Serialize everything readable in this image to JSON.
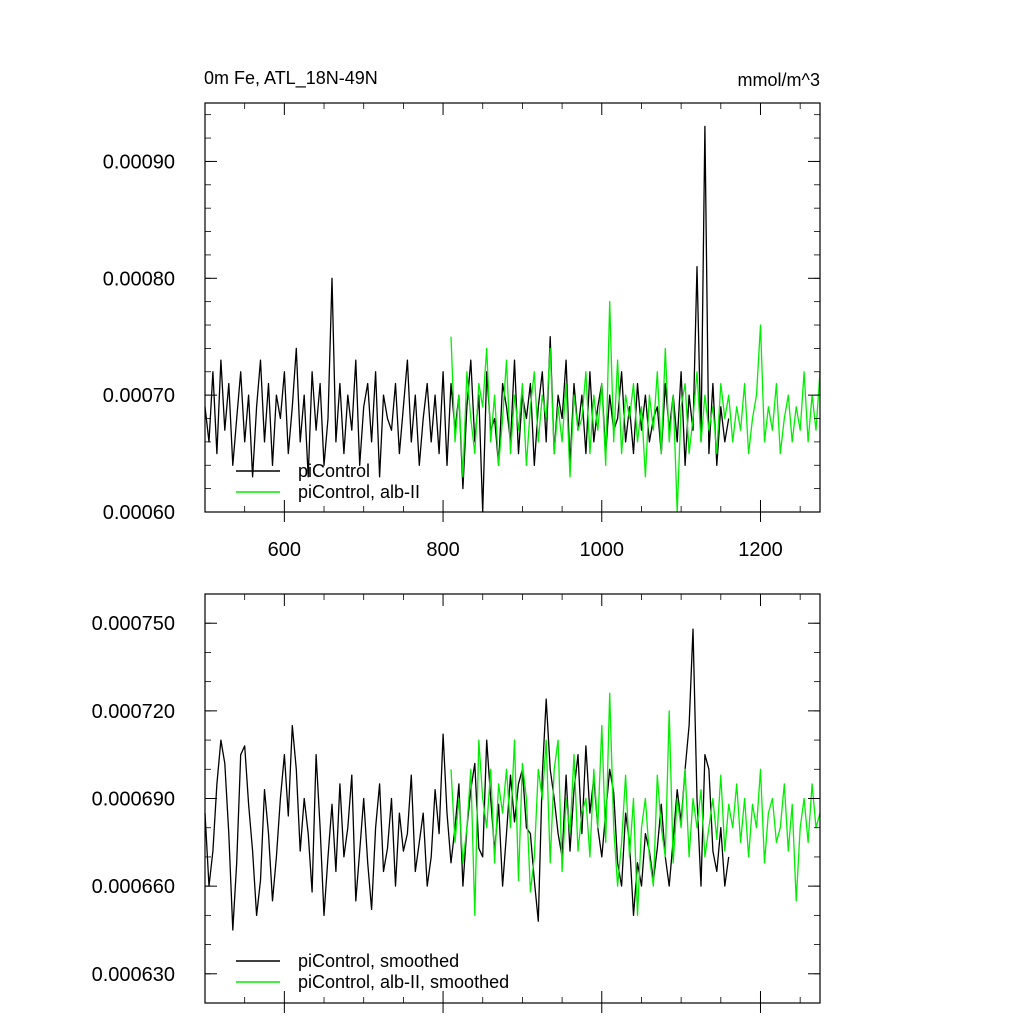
{
  "chart_data": [
    {
      "type": "line",
      "title": "0m Fe, ATL_18N-49N",
      "units": "mmol/m^3",
      "xlim": [
        500,
        1275
      ],
      "ylim": [
        0.0006,
        0.00095
      ],
      "x_tick_labels": [
        "600",
        "800",
        "1000",
        "1200"
      ],
      "x_ticks": [
        600,
        800,
        1000,
        1200
      ],
      "y_tick_labels": [
        "0.00060",
        "0.00070",
        "0.00080",
        "0.00090"
      ],
      "y_ticks": [
        0.0006,
        0.0007,
        0.0008,
        0.0009
      ],
      "legend_position": "bottom-left",
      "colors": {
        "piControl": "#000000",
        "alb-II": "#00ee00"
      },
      "series": [
        {
          "name": "piControl",
          "color": "#000000",
          "x": [
            500,
            505,
            510,
            515,
            520,
            525,
            530,
            535,
            540,
            545,
            550,
            555,
            560,
            565,
            570,
            575,
            580,
            585,
            590,
            595,
            600,
            605,
            610,
            615,
            620,
            625,
            630,
            635,
            640,
            645,
            650,
            655,
            660,
            665,
            670,
            675,
            680,
            685,
            690,
            695,
            700,
            705,
            710,
            715,
            720,
            725,
            730,
            735,
            740,
            745,
            750,
            755,
            760,
            765,
            770,
            775,
            780,
            785,
            790,
            795,
            800,
            805,
            810,
            815,
            820,
            825,
            830,
            835,
            840,
            845,
            850,
            855,
            860,
            865,
            870,
            875,
            880,
            885,
            890,
            895,
            900,
            905,
            910,
            915,
            920,
            925,
            930,
            935,
            940,
            945,
            950,
            955,
            960,
            965,
            970,
            975,
            980,
            985,
            990,
            995,
            1000,
            1005,
            1010,
            1015,
            1020,
            1025,
            1030,
            1035,
            1040,
            1045,
            1050,
            1055,
            1060,
            1065,
            1070,
            1075,
            1080,
            1085,
            1090,
            1095,
            1100,
            1105,
            1110,
            1115,
            1120,
            1125,
            1130,
            1135,
            1140,
            1145,
            1150,
            1155,
            1160
          ],
          "y": [
            0.00069,
            0.00066,
            0.00072,
            0.00065,
            0.00073,
            0.00067,
            0.00071,
            0.00064,
            0.00068,
            0.00072,
            0.00066,
            0.0007,
            0.00063,
            0.00069,
            0.00073,
            0.00066,
            0.00071,
            0.00064,
            0.0007,
            0.00068,
            0.00072,
            0.00065,
            0.00069,
            0.00074,
            0.00066,
            0.0007,
            0.00063,
            0.00072,
            0.00067,
            0.00071,
            0.00064,
            0.00068,
            0.0008,
            0.00066,
            0.00071,
            0.00065,
            0.0007,
            0.00067,
            0.00073,
            0.00064,
            0.00069,
            0.00071,
            0.00066,
            0.00072,
            0.00063,
            0.0007,
            0.00068,
            0.00067,
            0.00071,
            0.00065,
            0.00069,
            0.00073,
            0.00066,
            0.0007,
            0.00064,
            0.00068,
            0.00071,
            0.00066,
            0.0007,
            0.00065,
            0.00072,
            0.00064,
            0.00071,
            0.00067,
            0.0007,
            0.00062,
            0.00069,
            0.00073,
            0.00066,
            0.0007,
            0.0006,
            0.00072,
            0.00067,
            0.00068,
            0.00064,
            0.00071,
            0.00069,
            0.00066,
            0.00073,
            0.00065,
            0.0007,
            0.00068,
            0.00071,
            0.00064,
            0.00069,
            0.00072,
            0.00066,
            0.00075,
            0.00065,
            0.0007,
            0.00068,
            0.00073,
            0.00064,
            0.00071,
            0.00067,
            0.0007,
            0.00065,
            0.00072,
            0.00066,
            0.00069,
            0.00071,
            0.00065,
            0.0007,
            0.00067,
            0.00068,
            0.00072,
            0.00066,
            0.00069,
            0.00065,
            0.00071,
            0.00067,
            0.0007,
            0.00066,
            0.00068,
            0.00069,
            0.00065,
            0.00071,
            0.00067,
            0.0007,
            0.00066,
            0.00072,
            0.00064,
            0.0007,
            0.00067,
            0.00081,
            0.00066,
            0.00093,
            0.00065,
            0.00071,
            0.00064,
            0.00069,
            0.00066,
            0.00068
          ]
        },
        {
          "name": "piControl, alb-II",
          "color": "#00ee00",
          "x": [
            810,
            815,
            820,
            825,
            830,
            835,
            840,
            845,
            850,
            855,
            860,
            865,
            870,
            875,
            880,
            885,
            890,
            895,
            900,
            905,
            910,
            915,
            920,
            925,
            930,
            935,
            940,
            945,
            950,
            955,
            960,
            965,
            970,
            975,
            980,
            985,
            990,
            995,
            1000,
            1005,
            1010,
            1015,
            1020,
            1025,
            1030,
            1035,
            1040,
            1045,
            1050,
            1055,
            1060,
            1065,
            1070,
            1075,
            1080,
            1085,
            1090,
            1095,
            1100,
            1105,
            1110,
            1115,
            1120,
            1125,
            1130,
            1135,
            1140,
            1145,
            1150,
            1155,
            1160,
            1165,
            1170,
            1175,
            1180,
            1185,
            1190,
            1195,
            1200,
            1205,
            1210,
            1215,
            1220,
            1225,
            1230,
            1235,
            1240,
            1245,
            1250,
            1255,
            1260,
            1265,
            1270,
            1275
          ],
          "y": [
            0.00075,
            0.00066,
            0.0007,
            0.00063,
            0.00072,
            0.00068,
            0.00065,
            0.00071,
            0.00069,
            0.00074,
            0.00066,
            0.0007,
            0.00064,
            0.00068,
            0.00073,
            0.00065,
            0.0007,
            0.00067,
            0.00071,
            0.00064,
            0.00069,
            0.00072,
            0.00066,
            0.0007,
            0.00068,
            0.00074,
            0.00065,
            0.00069,
            0.00066,
            0.00071,
            0.00063,
            0.0007,
            0.00067,
            0.00068,
            0.00072,
            0.00065,
            0.0007,
            0.00067,
            0.00071,
            0.00064,
            0.00078,
            0.00066,
            0.00073,
            0.00065,
            0.0007,
            0.00068,
            0.00071,
            0.00066,
            0.00069,
            0.00063,
            0.0007,
            0.00067,
            0.00072,
            0.00065,
            0.00074,
            0.00066,
            0.0007,
            0.0006,
            0.00069,
            0.00071,
            0.00065,
            0.00068,
            0.00072,
            0.00066,
            0.0007,
            0.00067,
            0.00069,
            0.00065,
            0.00071,
            0.00068,
            0.0007,
            0.00066,
            0.00069,
            0.00067,
            0.00071,
            0.00065,
            0.00068,
            0.0007,
            0.00076,
            0.00066,
            0.00069,
            0.00067,
            0.00071,
            0.00065,
            0.00068,
            0.0007,
            0.00066,
            0.00069,
            0.00067,
            0.00072,
            0.00066,
            0.0007,
            0.00067,
            0.00072
          ]
        }
      ]
    },
    {
      "type": "line",
      "xlim": [
        500,
        1275
      ],
      "ylim": [
        0.00062,
        0.00076
      ],
      "x_ticks": [
        600,
        800,
        1000,
        1200
      ],
      "y_tick_labels": [
        "0.000630",
        "0.000660",
        "0.000690",
        "0.000720",
        "0.000750"
      ],
      "y_ticks": [
        0.00063,
        0.00066,
        0.00069,
        0.00072,
        0.00075
      ],
      "legend_position": "bottom-left",
      "series": [
        {
          "name": "piControl, smoothed",
          "color": "#000000",
          "x": [
            500,
            505,
            510,
            515,
            520,
            525,
            530,
            535,
            540,
            545,
            550,
            555,
            560,
            565,
            570,
            575,
            580,
            585,
            590,
            595,
            600,
            605,
            610,
            615,
            620,
            625,
            630,
            635,
            640,
            645,
            650,
            655,
            660,
            665,
            670,
            675,
            680,
            685,
            690,
            695,
            700,
            705,
            710,
            715,
            720,
            725,
            730,
            735,
            740,
            745,
            750,
            755,
            760,
            765,
            770,
            775,
            780,
            785,
            790,
            795,
            800,
            805,
            810,
            815,
            820,
            825,
            830,
            835,
            840,
            845,
            850,
            855,
            860,
            865,
            870,
            875,
            880,
            885,
            890,
            895,
            900,
            905,
            910,
            915,
            920,
            925,
            930,
            935,
            940,
            945,
            950,
            955,
            960,
            965,
            970,
            975,
            980,
            985,
            990,
            995,
            1000,
            1005,
            1010,
            1015,
            1020,
            1025,
            1030,
            1035,
            1040,
            1045,
            1050,
            1055,
            1060,
            1065,
            1070,
            1075,
            1080,
            1085,
            1090,
            1095,
            1100,
            1105,
            1110,
            1115,
            1120,
            1125,
            1130,
            1135,
            1140,
            1145,
            1150,
            1155,
            1160
          ],
          "y": [
            0.000685,
            0.00066,
            0.000672,
            0.000695,
            0.00071,
            0.000702,
            0.000678,
            0.000645,
            0.000668,
            0.000705,
            0.000708,
            0.000688,
            0.000672,
            0.00065,
            0.000662,
            0.000693,
            0.000678,
            0.000655,
            0.00067,
            0.00069,
            0.000705,
            0.000684,
            0.000715,
            0.0007,
            0.000672,
            0.00069,
            0.000678,
            0.000658,
            0.000705,
            0.00068,
            0.00065,
            0.00067,
            0.000688,
            0.000665,
            0.000695,
            0.00067,
            0.00068,
            0.000698,
            0.000655,
            0.000672,
            0.00069,
            0.000668,
            0.000652,
            0.00068,
            0.000695,
            0.000665,
            0.000673,
            0.00069,
            0.00066,
            0.000685,
            0.000672,
            0.000678,
            0.000698,
            0.000665,
            0.000675,
            0.000685,
            0.00066,
            0.00067,
            0.000693,
            0.000678,
            0.000712,
            0.000685,
            0.000668,
            0.00068,
            0.000695,
            0.00066,
            0.00068,
            0.000693,
            0.000702,
            0.000673,
            0.00067,
            0.00071,
            0.00069,
            0.000672,
            0.000688,
            0.00066,
            0.000678,
            0.000698,
            0.000682,
            0.000695,
            0.0007,
            0.00068,
            0.000678,
            0.000662,
            0.000648,
            0.000698,
            0.000724,
            0.0007,
            0.00069,
            0.000678,
            0.00067,
            0.000698,
            0.000672,
            0.000693,
            0.000705,
            0.000678,
            0.000708,
            0.000685,
            0.000697,
            0.00068,
            0.00067,
            0.000685,
            0.0007,
            0.000692,
            0.000668,
            0.00066,
            0.000685,
            0.000675,
            0.00065,
            0.000668,
            0.00066,
            0.000678,
            0.000672,
            0.000662,
            0.000673,
            0.000688,
            0.00067,
            0.00066,
            0.000676,
            0.000693,
            0.000682,
            0.0007,
            0.000715,
            0.000748,
            0.00069,
            0.00066,
            0.000705,
            0.0007,
            0.000672,
            0.000665,
            0.00068,
            0.00066,
            0.00067
          ]
        },
        {
          "name": "piControl, alb-II, smoothed",
          "color": "#00ee00",
          "x": [
            810,
            815,
            820,
            825,
            830,
            835,
            840,
            845,
            850,
            855,
            860,
            865,
            870,
            875,
            880,
            885,
            890,
            895,
            900,
            905,
            910,
            915,
            920,
            925,
            930,
            935,
            940,
            945,
            950,
            955,
            960,
            965,
            970,
            975,
            980,
            985,
            990,
            995,
            1000,
            1005,
            1010,
            1015,
            1020,
            1025,
            1030,
            1035,
            1040,
            1045,
            1050,
            1055,
            1060,
            1065,
            1070,
            1075,
            1080,
            1085,
            1090,
            1095,
            1100,
            1105,
            1110,
            1115,
            1120,
            1125,
            1130,
            1135,
            1140,
            1145,
            1150,
            1155,
            1160,
            1165,
            1170,
            1175,
            1180,
            1185,
            1190,
            1195,
            1200,
            1205,
            1210,
            1215,
            1220,
            1225,
            1230,
            1235,
            1240,
            1245,
            1250,
            1255,
            1260,
            1265,
            1270,
            1275
          ],
          "y": [
            0.0007,
            0.000675,
            0.00069,
            0.000668,
            0.00068,
            0.0007,
            0.00065,
            0.00071,
            0.00069,
            0.00068,
            0.0007,
            0.000668,
            0.000695,
            0.000685,
            0.0007,
            0.00068,
            0.00071,
            0.000662,
            0.000702,
            0.00069,
            0.000658,
            0.00067,
            0.0007,
            0.00069,
            0.00071,
            0.000668,
            0.0007,
            0.00071,
            0.000665,
            0.00069,
            0.000678,
            0.000705,
            0.000672,
            0.000685,
            0.00069,
            0.00067,
            0.0007,
            0.00068,
            0.000715,
            0.000675,
            0.000726,
            0.00068,
            0.00066,
            0.000675,
            0.000698,
            0.00067,
            0.00069,
            0.00065,
            0.00068,
            0.00069,
            0.00067,
            0.00066,
            0.000698,
            0.00068,
            0.00067,
            0.00072,
            0.000668,
            0.00069,
            0.00068,
            0.0007,
            0.00067,
            0.00069,
            0.00068,
            0.000693,
            0.00067,
            0.00068,
            0.00069,
            0.000676,
            0.000698,
            0.000672,
            0.000688,
            0.00068,
            0.000695,
            0.000675,
            0.00069,
            0.00067,
            0.000688,
            0.00068,
            0.0007,
            0.000668,
            0.000685,
            0.00069,
            0.000675,
            0.00068,
            0.000695,
            0.000672,
            0.000688,
            0.000655,
            0.00068,
            0.00069,
            0.000675,
            0.000695,
            0.00068,
            0.000685
          ]
        }
      ]
    }
  ]
}
